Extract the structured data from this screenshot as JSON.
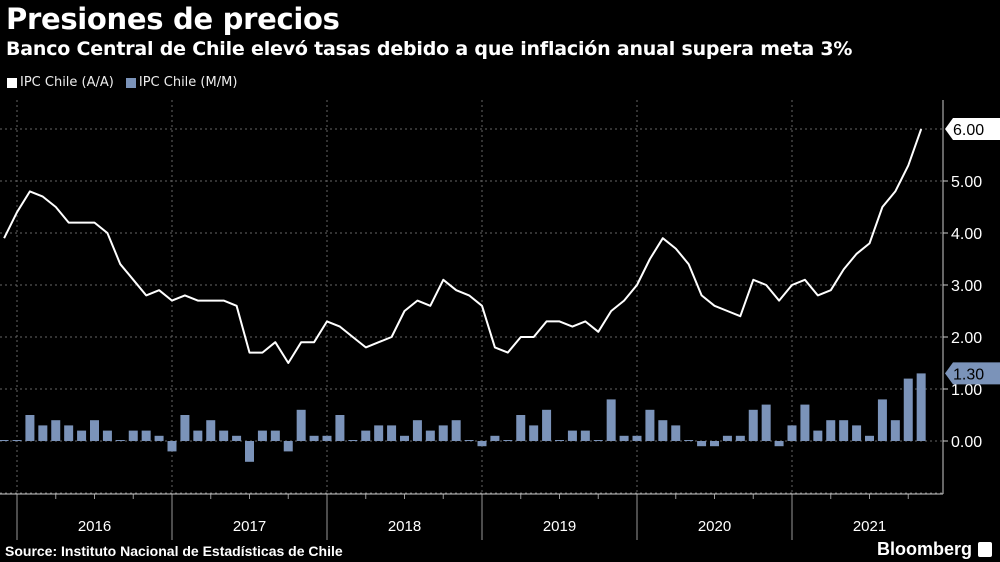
{
  "chart_data": {
    "type": "line+bar",
    "title": "Presiones de precios",
    "subtitle": "Banco Central de Chile elevó tasas debido a que inflación anual supera meta 3%",
    "legend_position": "top-left",
    "grid": true,
    "ylim": [
      -1,
      7
    ],
    "yticks": [
      "0.00",
      "1.00",
      "2.00",
      "3.00",
      "4.00",
      "5.00"
    ],
    "xticks": [
      "2016",
      "2017",
      "2018",
      "2019",
      "2020",
      "2021"
    ],
    "x_start": "2015-11",
    "x_end": "2021-10",
    "colors": {
      "line": "#ffffff",
      "bar": "#7b93b9",
      "grid": "#666666"
    },
    "series": [
      {
        "name": "IPC Chile (A/A)",
        "type": "line",
        "last_label": "6.00",
        "values": [
          3.9,
          4.4,
          4.8,
          4.7,
          4.5,
          4.2,
          4.2,
          4.2,
          4.0,
          3.4,
          3.1,
          2.8,
          2.9,
          2.7,
          2.8,
          2.7,
          2.7,
          2.7,
          2.6,
          1.7,
          1.7,
          1.9,
          1.5,
          1.9,
          1.9,
          2.3,
          2.2,
          2.0,
          1.8,
          1.9,
          2.0,
          2.5,
          2.7,
          2.6,
          3.1,
          2.9,
          2.8,
          2.6,
          1.8,
          1.7,
          2.0,
          2.0,
          2.3,
          2.3,
          2.2,
          2.3,
          2.1,
          2.5,
          2.7,
          3.0,
          3.5,
          3.9,
          3.7,
          3.4,
          2.8,
          2.6,
          2.5,
          2.4,
          3.1,
          3.0,
          2.7,
          3.0,
          3.1,
          2.8,
          2.9,
          3.3,
          3.6,
          3.8,
          4.5,
          4.8,
          5.3,
          6.0
        ]
      },
      {
        "name": "IPC Chile (M/M)",
        "type": "bar",
        "last_label": "1.30",
        "values": [
          0.0,
          0.0,
          0.5,
          0.3,
          0.4,
          0.3,
          0.2,
          0.4,
          0.2,
          0.0,
          0.2,
          0.2,
          0.1,
          -0.2,
          0.5,
          0.2,
          0.4,
          0.2,
          0.1,
          -0.4,
          0.2,
          0.2,
          -0.2,
          0.6,
          0.1,
          0.1,
          0.5,
          0.0,
          0.2,
          0.3,
          0.3,
          0.1,
          0.4,
          0.2,
          0.3,
          0.4,
          0.0,
          -0.1,
          0.1,
          0.0,
          0.5,
          0.3,
          0.6,
          0.0,
          0.2,
          0.2,
          0.0,
          0.8,
          0.1,
          0.1,
          0.6,
          0.4,
          0.3,
          0.0,
          -0.1,
          -0.1,
          0.1,
          0.1,
          0.6,
          0.7,
          -0.1,
          0.3,
          0.7,
          0.2,
          0.4,
          0.4,
          0.3,
          0.1,
          0.8,
          0.4,
          1.2,
          1.3
        ]
      }
    ]
  },
  "footer": {
    "source": "Source: Instituto Nacional de Estadísticas de Chile",
    "logo": "Bloomberg"
  }
}
